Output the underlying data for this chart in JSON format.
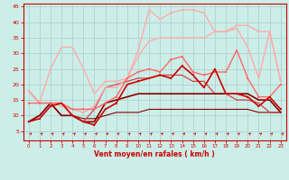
{
  "xlabel": "Vent moyen/en rafales ( km/h )",
  "bg_color": "#cceee8",
  "grid_color": "#aacccc",
  "xlim": [
    -0.5,
    23.5
  ],
  "ylim": [
    2,
    46
  ],
  "yticks": [
    5,
    10,
    15,
    20,
    25,
    30,
    35,
    40,
    45
  ],
  "xticks": [
    0,
    1,
    2,
    3,
    4,
    5,
    6,
    7,
    8,
    9,
    10,
    11,
    12,
    13,
    14,
    15,
    16,
    17,
    18,
    19,
    20,
    21,
    22,
    23
  ],
  "x": [
    0,
    1,
    2,
    3,
    4,
    5,
    6,
    7,
    8,
    9,
    10,
    11,
    12,
    13,
    14,
    15,
    16,
    17,
    18,
    19,
    20,
    21,
    22,
    23
  ],
  "lines": [
    {
      "y": [
        8,
        9,
        13,
        14,
        10,
        8,
        7,
        12,
        14,
        20,
        21,
        22,
        23,
        22,
        26,
        23,
        19,
        25,
        17,
        17,
        16,
        13,
        16,
        12
      ],
      "color": "#cc0000",
      "lw": 1.2,
      "marker": "s",
      "ms": 2.0,
      "zorder": 6
    },
    {
      "y": [
        8,
        10,
        14,
        10,
        10,
        8,
        8,
        14,
        15,
        16,
        17,
        17,
        17,
        17,
        17,
        17,
        17,
        17,
        17,
        17,
        17,
        15,
        15,
        11
      ],
      "color": "#880000",
      "lw": 1.2,
      "marker": null,
      "ms": 0,
      "zorder": 4
    },
    {
      "y": [
        8,
        10,
        14,
        10,
        10,
        9,
        9,
        10,
        11,
        11,
        11,
        12,
        12,
        12,
        12,
        12,
        12,
        12,
        12,
        12,
        12,
        11,
        11,
        11
      ],
      "color": "#880000",
      "lw": 0.8,
      "marker": null,
      "ms": 0,
      "zorder": 3
    },
    {
      "y": [
        18,
        14,
        25,
        32,
        32,
        25,
        17,
        21,
        21,
        22,
        29,
        34,
        35,
        35,
        35,
        35,
        35,
        37,
        37,
        38,
        32,
        22,
        37,
        21
      ],
      "color": "#ffaaaa",
      "lw": 1.0,
      "marker": null,
      "ms": 0,
      "zorder": 2
    },
    {
      "y": [
        18,
        14,
        14,
        14,
        10,
        8,
        12,
        19,
        20,
        21,
        22,
        22,
        23,
        23,
        23,
        21,
        21,
        17,
        17,
        15,
        15,
        14,
        11,
        11
      ],
      "color": "#cc4444",
      "lw": 0.9,
      "marker": null,
      "ms": 0,
      "zorder": 3
    },
    {
      "y": [
        14,
        14,
        14,
        14,
        12,
        12,
        12,
        14,
        16,
        22,
        24,
        25,
        24,
        28,
        29,
        24,
        23,
        24,
        24,
        31,
        22,
        16,
        16,
        20
      ],
      "color": "#ff6666",
      "lw": 1.0,
      "marker": "s",
      "ms": 2.0,
      "zorder": 4
    },
    {
      "y": [
        18,
        14,
        14,
        13,
        12,
        11,
        13,
        19,
        19,
        22,
        31,
        44,
        41,
        43,
        44,
        44,
        43,
        37,
        37,
        39,
        39,
        37,
        37,
        21
      ],
      "color": "#ffaaaa",
      "lw": 1.0,
      "marker": "s",
      "ms": 1.8,
      "zorder": 3
    }
  ]
}
